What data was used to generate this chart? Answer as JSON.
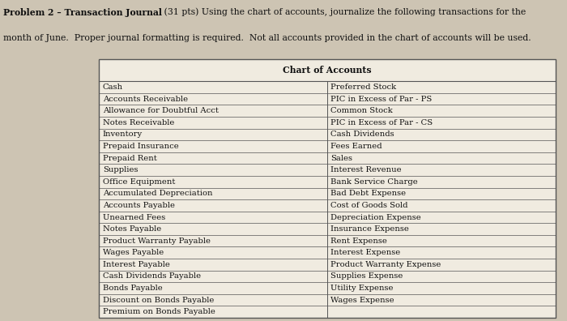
{
  "title_bold": "Problem 2 – Transaction Journal",
  "title_bold_suffix": " (31 pts) Using the chart of accounts, journalize the following transactions for the",
  "title_line2": "month of June.  Proper journal formatting is required.  Not all accounts provided in the chart of accounts will be used.",
  "table_title": "Chart of Accounts",
  "left_col": [
    "Cash",
    "Accounts Receivable",
    "Allowance for Doubtful Acct",
    "Notes Receivable",
    "Inventory",
    "Prepaid Insurance",
    "Prepaid Rent",
    "Supplies",
    "Office Equipment",
    "Accumulated Depreciation",
    "Accounts Payable",
    "Unearned Fees",
    "Notes Payable",
    "Product Warranty Payable",
    "Wages Payable",
    "Interest Payable",
    "Cash Dividends Payable",
    "Bonds Payable",
    "Discount on Bonds Payable",
    "Premium on Bonds Payable"
  ],
  "right_col": [
    "Preferred Stock",
    "PIC in Excess of Par - PS",
    "Common Stock",
    "PIC in Excess of Par - CS",
    "Cash Dividends",
    "Fees Earned",
    "Sales",
    "Interest Revenue",
    "Bank Service Charge",
    "Bad Debt Expense",
    "Cost of Goods Sold",
    "Depreciation Expense",
    "Insurance Expense",
    "Rent Expense",
    "Interest Expense",
    "Product Warranty Expense",
    "Supplies Expense",
    "Utility Expense",
    "Wages Expense",
    ""
  ],
  "bg_color": "#cdc4b3",
  "table_bg": "#f0ebe0",
  "border_color": "#555555",
  "text_color": "#111111",
  "title_fontsize": 7.8,
  "cell_fontsize": 7.2,
  "table_header_fontsize": 7.8
}
